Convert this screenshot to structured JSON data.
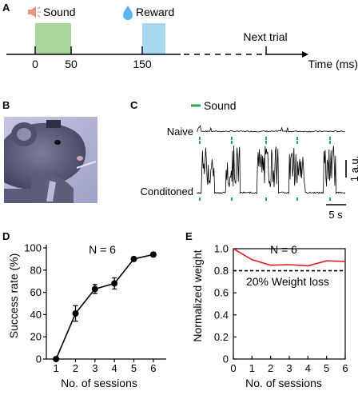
{
  "panel_labels": {
    "a": "A",
    "b": "B",
    "c": "C",
    "d": "D",
    "e": "E"
  },
  "panel_a": {
    "sound_label": "Sound",
    "reward_label": "Reward",
    "ticks": [
      "0",
      "50",
      "150"
    ],
    "next_trial_label": "Next trial",
    "axis_label": "Time (ms)",
    "colors": {
      "sound": "#a9d69a",
      "reward": "#a9d8f2"
    },
    "sound_window_ms": [
      0,
      50
    ],
    "reward_window_ms": [
      150,
      180
    ]
  },
  "panel_c": {
    "legend_label": "Sound",
    "naive_label": "Naive",
    "conditioned_label": "Conditoned",
    "y_scale_label": "1 a.u.",
    "x_scale_label": "5 s",
    "marker_color": "#2aa84a"
  },
  "chart_data": [
    {
      "panel": "D",
      "type": "line",
      "title": "N = 6",
      "xlabel": "No. of sessions",
      "ylabel": "Success rate (%)",
      "x": [
        1,
        2,
        3,
        4,
        5,
        6
      ],
      "series": [
        {
          "values": [
            0,
            41,
            63,
            68,
            90,
            94
          ],
          "error": [
            1,
            7,
            4,
            5,
            1,
            2
          ]
        }
      ],
      "xlim": [
        0.5,
        6.5
      ],
      "ylim": [
        0,
        100
      ],
      "xticks": [
        "1",
        "2",
        "3",
        "4",
        "5",
        "6"
      ],
      "yticks": [
        "0",
        "20",
        "40",
        "60",
        "80",
        "100"
      ],
      "grid": false,
      "color": "#000000"
    },
    {
      "panel": "E",
      "type": "line",
      "title": "N = 6",
      "xlabel": "No. of sessions",
      "ylabel": "Normalized weight",
      "x": [
        0,
        1,
        2,
        3,
        4,
        5,
        6
      ],
      "series": [
        {
          "values": [
            1.0,
            0.9,
            0.85,
            0.855,
            0.845,
            0.89,
            0.885
          ]
        }
      ],
      "reference_line": {
        "value": 0.8,
        "label": "20% Weight loss"
      },
      "xlim": [
        0,
        6
      ],
      "ylim": [
        0,
        1.0
      ],
      "xticks": [
        "0",
        "1",
        "2",
        "3",
        "4",
        "5",
        "6"
      ],
      "yticks": [
        "0",
        "0.2",
        "0.4",
        "0.6",
        "0.8",
        "1.0"
      ],
      "grid": false,
      "color": "#e02020"
    }
  ]
}
